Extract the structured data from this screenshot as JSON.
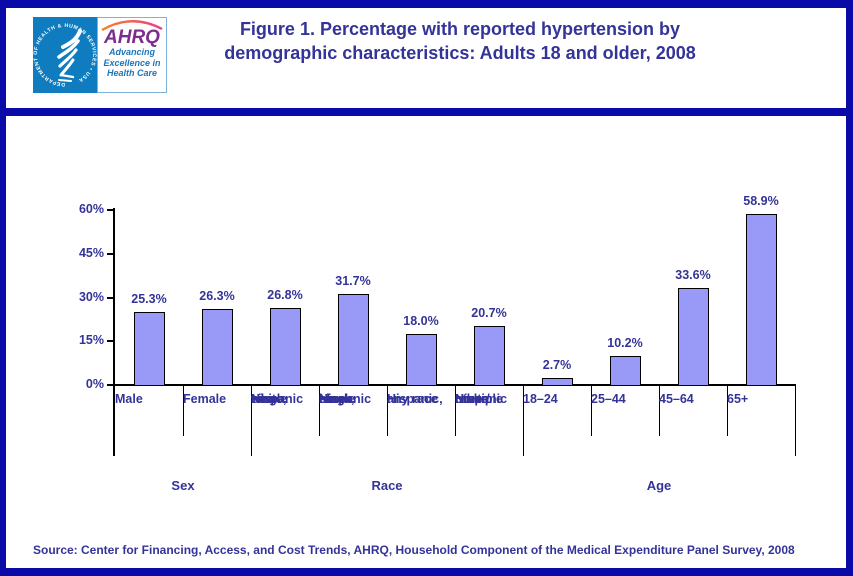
{
  "header": {
    "hhs_seal_text": "DEPARTMENT OF HEALTH & HUMAN SERVICES • USA",
    "ahrq_acronym": "AHRQ",
    "ahrq_tagline": [
      "Advancing",
      "Excellence in",
      "Health Care"
    ],
    "title_line1": "Figure 1. Percentage with reported hypertension by",
    "title_line2": "demographic characteristics: Adults 18 and older, 2008"
  },
  "chart_data": {
    "type": "bar",
    "title": "Figure 1. Percentage with reported hypertension by demographic characteristics: Adults 18 and older, 2008",
    "xlabel": "",
    "ylabel": "",
    "ylim": [
      0,
      60
    ],
    "y_ticks": [
      "0%",
      "15%",
      "30%",
      "45%",
      "60%"
    ],
    "grid": false,
    "legend": false,
    "categories": [
      "Male",
      "Female",
      "Non-Hispanic white, single race",
      "Non-Hispanic black, single race",
      "Hispanic, any race",
      "Non-Hispanic other/multiple races",
      "18–24",
      "25–44",
      "45–64",
      "65+"
    ],
    "category_lines": [
      [
        "Male"
      ],
      [
        "Female"
      ],
      [
        "Non-",
        "Hispanic",
        "white,",
        "single",
        "race"
      ],
      [
        "Non-",
        "Hispanic",
        "black,",
        "single",
        "race"
      ],
      [
        "Hispanic,",
        "any race"
      ],
      [
        "Non-",
        "Hispanic",
        "other/",
        "multiple",
        "races"
      ],
      [
        "18–24"
      ],
      [
        "25–44"
      ],
      [
        "45–64"
      ],
      [
        "65+"
      ]
    ],
    "values": [
      25.3,
      26.3,
      26.8,
      31.7,
      18.0,
      20.7,
      2.7,
      10.2,
      33.6,
      58.9
    ],
    "value_labels": [
      "25.3%",
      "26.3%",
      "26.8%",
      "31.7%",
      "18.0%",
      "20.7%",
      "2.7%",
      "10.2%",
      "33.6%",
      "58.9%"
    ],
    "groups": [
      {
        "label": "Sex",
        "span": 2
      },
      {
        "label": "Race",
        "span": 4
      },
      {
        "label": "Age",
        "span": 4
      }
    ],
    "bar_fill": "#9999F8",
    "bar_border": "#000000",
    "text_color": "#333399"
  },
  "footer": {
    "source": "Source: Center for Financing, Access, and Cost Trends, AHRQ, Household Component of the Medical Expenditure Panel Survey, 2008"
  },
  "colors": {
    "frame": "#0A0AA8",
    "hhs_blue": "#0E7CBF",
    "ahrq_purple": "#7B2E8E",
    "ahrq_blue": "#1B75BB",
    "swoosh_start": "#F58220",
    "swoosh_end": "#EE3D8A"
  }
}
